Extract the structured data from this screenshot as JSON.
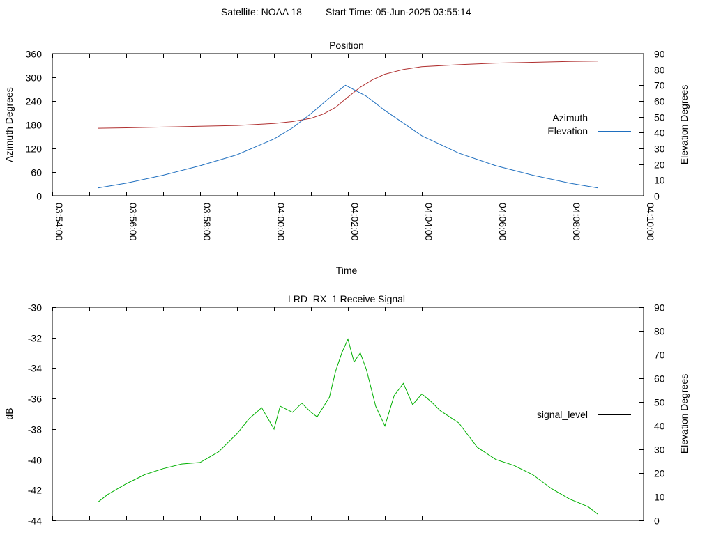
{
  "header": {
    "satellite_label": "Satellite: NOAA 18",
    "start_time_label": "Start Time: 05-Jun-2025 03:55:14"
  },
  "colors": {
    "azimuth": "#b03030",
    "elevation": "#1f6fbf",
    "signal": "#00b000",
    "legend_signal": "#000000",
    "frame": "#000000"
  },
  "chart_data": [
    {
      "id": "position",
      "type": "line",
      "title": "Position",
      "xlabel": "Time",
      "ylabel": "Azimuth Degrees",
      "y2label": "Elevation Degrees",
      "xlim": [
        "03:54:00",
        "04:10:00"
      ],
      "ylim": [
        0,
        360
      ],
      "y2lim": [
        0,
        90
      ],
      "x_ticks": [
        "03:54:00",
        "03:56:00",
        "03:58:00",
        "04:00:00",
        "04:02:00",
        "04:04:00",
        "04:06:00",
        "04:08:00",
        "04:10:00"
      ],
      "y_ticks": [
        0,
        60,
        120,
        180,
        240,
        300,
        360
      ],
      "y2_ticks": [
        0,
        10,
        20,
        30,
        40,
        50,
        60,
        70,
        80,
        90
      ],
      "legend_position": "right",
      "series": [
        {
          "name": "Azimuth",
          "axis": "y",
          "x": [
            "03:55:14",
            "03:56:00",
            "03:57:00",
            "03:58:00",
            "03:59:00",
            "04:00:00",
            "04:00:30",
            "04:01:00",
            "04:01:20",
            "04:01:40",
            "04:02:00",
            "04:02:20",
            "04:02:40",
            "04:03:00",
            "04:03:30",
            "04:04:00",
            "04:05:00",
            "04:06:00",
            "04:07:00",
            "04:08:00",
            "04:08:46"
          ],
          "values": [
            171,
            172,
            174,
            176,
            178,
            183,
            188,
            196,
            207,
            224,
            250,
            275,
            294,
            308,
            320,
            327,
            332,
            336,
            338,
            340,
            341
          ]
        },
        {
          "name": "Elevation",
          "axis": "y2",
          "x": [
            "03:55:14",
            "03:56:00",
            "03:57:00",
            "03:58:00",
            "03:59:00",
            "04:00:00",
            "04:00:30",
            "04:01:00",
            "04:01:30",
            "04:01:56",
            "04:02:30",
            "04:03:00",
            "04:03:30",
            "04:04:00",
            "04:05:00",
            "04:06:00",
            "04:07:00",
            "04:08:00",
            "04:08:46"
          ],
          "values": [
            5,
            8,
            13,
            19,
            26,
            36,
            43,
            52,
            62,
            70,
            63,
            54,
            46,
            38,
            27,
            19,
            13,
            8,
            5
          ]
        }
      ]
    },
    {
      "id": "signal",
      "type": "line",
      "title": "LRD_RX_1 Receive Signal",
      "ylabel": "dB",
      "y2label": "Elevation Degrees",
      "xlim": [
        "03:54:00",
        "04:10:00"
      ],
      "ylim": [
        -44,
        -30
      ],
      "y2lim": [
        0,
        90
      ],
      "y_ticks": [
        -44,
        -42,
        -40,
        -38,
        -36,
        -34,
        -32,
        -30
      ],
      "y2_ticks": [
        0,
        10,
        20,
        30,
        40,
        50,
        60,
        70,
        80,
        90
      ],
      "legend_position": "right",
      "series": [
        {
          "name": "signal_level",
          "axis": "y",
          "x": [
            "03:55:14",
            "03:55:30",
            "03:56:00",
            "03:56:30",
            "03:57:00",
            "03:57:30",
            "03:58:00",
            "03:58:30",
            "03:59:00",
            "03:59:20",
            "03:59:40",
            "03:59:50",
            "04:00:00",
            "04:00:10",
            "04:00:30",
            "04:00:45",
            "04:01:00",
            "04:01:10",
            "04:01:30",
            "04:01:40",
            "04:01:50",
            "04:02:00",
            "04:02:10",
            "04:02:20",
            "04:02:30",
            "04:02:45",
            "04:03:00",
            "04:03:15",
            "04:03:30",
            "04:03:45",
            "04:04:00",
            "04:04:15",
            "04:04:30",
            "04:05:00",
            "04:05:30",
            "04:06:00",
            "04:06:30",
            "04:07:00",
            "04:07:30",
            "04:08:00",
            "04:08:30",
            "04:08:46"
          ],
          "values": [
            -42.8,
            -42.3,
            -41.6,
            -41.0,
            -40.6,
            -40.3,
            -40.2,
            -39.5,
            -38.3,
            -37.3,
            -36.6,
            -37.3,
            -38.0,
            -36.5,
            -36.9,
            -36.3,
            -36.9,
            -37.2,
            -35.9,
            -34.2,
            -33.0,
            -32.1,
            -33.6,
            -33.0,
            -34.1,
            -36.5,
            -37.8,
            -35.8,
            -35.0,
            -36.4,
            -35.7,
            -36.2,
            -36.8,
            -37.6,
            -39.2,
            -40.0,
            -40.4,
            -41.0,
            -41.9,
            -42.6,
            -43.1,
            -43.6
          ]
        }
      ]
    }
  ]
}
